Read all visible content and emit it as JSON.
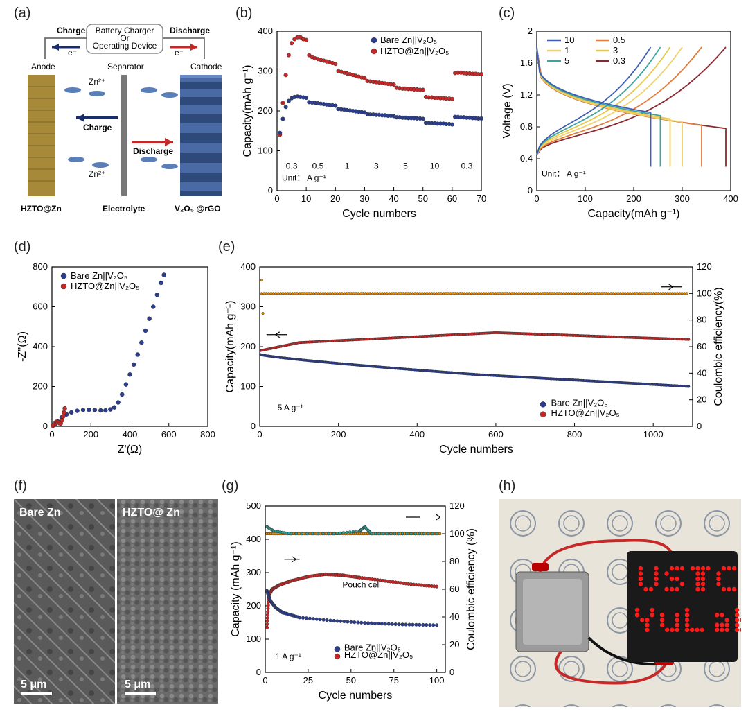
{
  "labels": {
    "a": "(a)",
    "b": "(b)",
    "c": "(c)",
    "d": "(d)",
    "e": "(e)",
    "f": "(f)",
    "g": "(g)",
    "h": "(h)"
  },
  "colors": {
    "blue": "#2a3d8f",
    "red": "#c62828",
    "orange": "#e68a00",
    "teal": "#2aa59a",
    "lineBlue": "#3f5fb5",
    "lineTeal": "#3aa3a0",
    "lineYellow1": "#e6c84a",
    "lineYellow2": "#f0d26a",
    "lineOrange": "#e37b3a",
    "lineDarkRed": "#8b2930",
    "anodeGold": "#a68a3a",
    "cathodeBlue": "#2e4a7a",
    "ionBlue": "#5a7fb8",
    "gridGray": "#d0d0c4",
    "semGray": "#6a6a6a"
  },
  "panelA": {
    "top": {
      "left": "Charge",
      "device": "Battery Charger\nOr\nOperating Device",
      "right": "Discharge",
      "e": "e⁻"
    },
    "anode": "Anode",
    "separator": "Separator",
    "cathode": "Cathode",
    "zn": "Zn²⁺",
    "charge": "Charge",
    "discharge": "Discharge",
    "bottomLeft": "HZTO@Zn",
    "bottomMid": "Electrolyte",
    "bottomRight": "V₂O₅ @rGO"
  },
  "panelB": {
    "type": "scatter",
    "title": "",
    "xlabel": "Cycle numbers",
    "ylabel": "Capacity(mAh g⁻¹)",
    "xlim": [
      0,
      70
    ],
    "ylim": [
      0,
      400
    ],
    "xticks": [
      0,
      10,
      20,
      30,
      40,
      50,
      60,
      70
    ],
    "yticks": [
      0,
      100,
      200,
      300,
      400
    ],
    "unitText": "Unit： A g⁻¹",
    "rateLabels": [
      {
        "x": 5,
        "t": "0.3"
      },
      {
        "x": 14,
        "t": "0.5"
      },
      {
        "x": 24,
        "t": "1"
      },
      {
        "x": 34,
        "t": "3"
      },
      {
        "x": 44,
        "t": "5"
      },
      {
        "x": 54,
        "t": "10"
      },
      {
        "x": 65,
        "t": "0.3"
      }
    ],
    "legend": [
      {
        "label": "Bare Zn||V₂O₅",
        "color": "#2a3d8f"
      },
      {
        "label": "HZTO@Zn||V₂O₅",
        "color": "#c62828"
      }
    ],
    "series": [
      {
        "color": "#c62828",
        "pts": [
          [
            1,
            140
          ],
          [
            2,
            220
          ],
          [
            3,
            290
          ],
          [
            4,
            340
          ],
          [
            5,
            370
          ],
          [
            6,
            380
          ],
          [
            7,
            385
          ],
          [
            8,
            385
          ],
          [
            9,
            380
          ],
          [
            10,
            378
          ],
          [
            11,
            340
          ],
          [
            12,
            335
          ],
          [
            13,
            332
          ],
          [
            14,
            330
          ],
          [
            15,
            328
          ],
          [
            16,
            326
          ],
          [
            17,
            324
          ],
          [
            18,
            322
          ],
          [
            19,
            320
          ],
          [
            20,
            318
          ],
          [
            21,
            300
          ],
          [
            22,
            298
          ],
          [
            23,
            296
          ],
          [
            24,
            294
          ],
          [
            25,
            292
          ],
          [
            26,
            290
          ],
          [
            27,
            288
          ],
          [
            28,
            286
          ],
          [
            29,
            284
          ],
          [
            30,
            282
          ],
          [
            31,
            275
          ],
          [
            32,
            274
          ],
          [
            33,
            273
          ],
          [
            34,
            272
          ],
          [
            35,
            271
          ],
          [
            36,
            270
          ],
          [
            37,
            269
          ],
          [
            38,
            268
          ],
          [
            39,
            267
          ],
          [
            40,
            266
          ],
          [
            41,
            258
          ],
          [
            42,
            257
          ],
          [
            43,
            256
          ],
          [
            44,
            256
          ],
          [
            45,
            255
          ],
          [
            46,
            255
          ],
          [
            47,
            254
          ],
          [
            48,
            254
          ],
          [
            49,
            253
          ],
          [
            50,
            253
          ],
          [
            51,
            235
          ],
          [
            52,
            234
          ],
          [
            53,
            234
          ],
          [
            54,
            233
          ],
          [
            55,
            233
          ],
          [
            56,
            232
          ],
          [
            57,
            232
          ],
          [
            58,
            231
          ],
          [
            59,
            231
          ],
          [
            60,
            230
          ],
          [
            61,
            295
          ],
          [
            62,
            296
          ],
          [
            63,
            296
          ],
          [
            64,
            295
          ],
          [
            65,
            294
          ],
          [
            66,
            294
          ],
          [
            67,
            293
          ],
          [
            68,
            293
          ],
          [
            69,
            292
          ],
          [
            70,
            292
          ]
        ]
      },
      {
        "color": "#2a3d8f",
        "pts": [
          [
            1,
            145
          ],
          [
            2,
            180
          ],
          [
            3,
            210
          ],
          [
            4,
            225
          ],
          [
            5,
            232
          ],
          [
            6,
            235
          ],
          [
            7,
            236
          ],
          [
            8,
            235
          ],
          [
            9,
            234
          ],
          [
            10,
            233
          ],
          [
            11,
            222
          ],
          [
            12,
            221
          ],
          [
            13,
            220
          ],
          [
            14,
            219
          ],
          [
            15,
            218
          ],
          [
            16,
            217
          ],
          [
            17,
            216
          ],
          [
            18,
            215
          ],
          [
            19,
            214
          ],
          [
            20,
            213
          ],
          [
            21,
            205
          ],
          [
            22,
            204
          ],
          [
            23,
            203
          ],
          [
            24,
            202
          ],
          [
            25,
            201
          ],
          [
            26,
            200
          ],
          [
            27,
            199
          ],
          [
            28,
            198
          ],
          [
            29,
            197
          ],
          [
            30,
            196
          ],
          [
            31,
            192
          ],
          [
            32,
            191
          ],
          [
            33,
            191
          ],
          [
            34,
            190
          ],
          [
            35,
            190
          ],
          [
            36,
            189
          ],
          [
            37,
            189
          ],
          [
            38,
            188
          ],
          [
            39,
            188
          ],
          [
            40,
            187
          ],
          [
            41,
            184
          ],
          [
            42,
            184
          ],
          [
            43,
            183
          ],
          [
            44,
            183
          ],
          [
            45,
            182
          ],
          [
            46,
            182
          ],
          [
            47,
            182
          ],
          [
            48,
            181
          ],
          [
            49,
            181
          ],
          [
            50,
            180
          ],
          [
            51,
            170
          ],
          [
            52,
            170
          ],
          [
            53,
            169
          ],
          [
            54,
            169
          ],
          [
            55,
            168
          ],
          [
            56,
            168
          ],
          [
            57,
            168
          ],
          [
            58,
            167
          ],
          [
            59,
            167
          ],
          [
            60,
            166
          ],
          [
            61,
            185
          ],
          [
            62,
            185
          ],
          [
            63,
            184
          ],
          [
            64,
            184
          ],
          [
            65,
            183
          ],
          [
            66,
            183
          ],
          [
            67,
            182
          ],
          [
            68,
            182
          ],
          [
            69,
            181
          ],
          [
            70,
            181
          ]
        ]
      }
    ]
  },
  "panelC": {
    "type": "line",
    "xlabel": "Capacity(mAh g⁻¹)",
    "ylabel": "Voltage (V)",
    "xlim": [
      0,
      400
    ],
    "ylim": [
      0,
      2.0
    ],
    "xticks": [
      0,
      100,
      200,
      300,
      400
    ],
    "yticks": [
      0,
      0.4,
      0.8,
      1.2,
      1.6,
      2.0
    ],
    "unitText": "Unit： A g⁻¹",
    "legend": [
      {
        "label": "10",
        "color": "#3f5fb5"
      },
      {
        "label": "1",
        "color": "#f0d26a"
      },
      {
        "label": "5",
        "color": "#3aa3a0"
      },
      {
        "label": "0.5",
        "color": "#e37b3a"
      },
      {
        "label": "3",
        "color": "#e6c84a"
      },
      {
        "label": "0.3",
        "color": "#8b2930"
      }
    ],
    "curves": [
      {
        "color": "#8b2930",
        "cap": 390,
        "vdMid": 0.78,
        "vcMid": 0.95
      },
      {
        "color": "#e37b3a",
        "cap": 340,
        "vdMid": 0.82,
        "vcMid": 0.98
      },
      {
        "color": "#f0d26a",
        "cap": 300,
        "vdMid": 0.86,
        "vcMid": 1.02
      },
      {
        "color": "#e6c84a",
        "cap": 275,
        "vdMid": 0.9,
        "vcMid": 1.06
      },
      {
        "color": "#3aa3a0",
        "cap": 255,
        "vdMid": 0.94,
        "vcMid": 1.1
      },
      {
        "color": "#3f5fb5",
        "cap": 235,
        "vdMid": 0.98,
        "vcMid": 1.15
      }
    ]
  },
  "panelD": {
    "type": "scatter",
    "xlabel": "Z'(Ω)",
    "ylabel": "-Z''(Ω)",
    "xlim": [
      0,
      800
    ],
    "ylim": [
      0,
      800
    ],
    "xticks": [
      0,
      200,
      400,
      600,
      800
    ],
    "yticks": [
      0,
      200,
      400,
      600,
      800
    ],
    "legend": [
      {
        "label": "Bare Zn||V₂O₅",
        "color": "#2a3d8f"
      },
      {
        "label": "HZTO@Zn||V₂O₅",
        "color": "#c62828"
      }
    ],
    "series": [
      {
        "color": "#2a3d8f",
        "pts": [
          [
            15,
            8
          ],
          [
            30,
            25
          ],
          [
            50,
            45
          ],
          [
            75,
            60
          ],
          [
            100,
            70
          ],
          [
            130,
            78
          ],
          [
            160,
            82
          ],
          [
            190,
            83
          ],
          [
            220,
            82
          ],
          [
            250,
            80
          ],
          [
            275,
            80
          ],
          [
            300,
            85
          ],
          [
            320,
            95
          ],
          [
            340,
            120
          ],
          [
            360,
            160
          ],
          [
            380,
            210
          ],
          [
            400,
            260
          ],
          [
            420,
            310
          ],
          [
            440,
            360
          ],
          [
            460,
            420
          ],
          [
            480,
            480
          ],
          [
            500,
            540
          ],
          [
            520,
            600
          ],
          [
            540,
            660
          ],
          [
            560,
            720
          ],
          [
            575,
            760
          ]
        ]
      },
      {
        "color": "#c62828",
        "pts": [
          [
            5,
            3
          ],
          [
            10,
            8
          ],
          [
            15,
            14
          ],
          [
            22,
            22
          ],
          [
            30,
            20
          ],
          [
            38,
            16
          ],
          [
            45,
            14
          ],
          [
            52,
            30
          ],
          [
            58,
            50
          ],
          [
            62,
            70
          ],
          [
            66,
            90
          ]
        ]
      }
    ]
  },
  "panelE": {
    "type": "dualY",
    "xlabel": "Cycle numbers",
    "ylabel": "Capacity(mAh g⁻¹)",
    "y2label": "Coulombic efficiency(%)",
    "xlim": [
      0,
      1100
    ],
    "ylim": [
      0,
      400
    ],
    "y2lim": [
      0,
      120
    ],
    "xticks": [
      0,
      200,
      400,
      600,
      800,
      1000
    ],
    "yticks": [
      0,
      100,
      200,
      300,
      400
    ],
    "y2ticks": [
      0,
      20,
      40,
      60,
      80,
      100,
      120
    ],
    "rateText": "5 A g⁻¹",
    "legend": [
      {
        "label": "Bare Zn||V₂O₅",
        "color": "#2a3d8f"
      },
      {
        "label": "HZTO@Zn||V₂O₅",
        "color": "#c62828"
      }
    ],
    "lines": {
      "blue": {
        "color": "#2a3d8f",
        "start": [
          2,
          180
        ],
        "mid": [
          550,
          130
        ],
        "end": [
          1090,
          100
        ]
      },
      "red": {
        "color": "#c62828",
        "start": [
          2,
          190
        ],
        "rise": [
          100,
          210
        ],
        "peak": [
          600,
          235
        ],
        "end": [
          1090,
          218
        ]
      },
      "ce": {
        "color": "#e68a00",
        "y": 100
      }
    }
  },
  "panelF": {
    "left": "Bare Zn",
    "right": "HZTO@ Zn",
    "scale": "5 μm"
  },
  "panelG": {
    "type": "dualY",
    "xlabel": "Cycle numbers",
    "ylabel": "Capacity (mAh g⁻¹)",
    "y2label": "Coulombic efficiency (%)",
    "xlim": [
      0,
      105
    ],
    "ylim": [
      0,
      500
    ],
    "y2lim": [
      0,
      120
    ],
    "xticks": [
      0,
      25,
      50,
      75,
      100
    ],
    "yticks": [
      0,
      100,
      200,
      300,
      400,
      500
    ],
    "y2ticks": [
      0,
      20,
      40,
      60,
      80,
      100,
      120
    ],
    "rateText": "1 A g⁻¹",
    "centerText": "Pouch cell",
    "legend": [
      {
        "label": "Bare Zn||V₂O₅",
        "color": "#2a3d8f"
      },
      {
        "label": "HZTO@Zn||V₂O₅",
        "color": "#c62828"
      }
    ],
    "lines": {
      "blue": {
        "color": "#2a3d8f",
        "pts": [
          [
            1,
            245
          ],
          [
            3,
            215
          ],
          [
            6,
            195
          ],
          [
            10,
            180
          ],
          [
            20,
            165
          ],
          [
            40,
            155
          ],
          [
            60,
            148
          ],
          [
            80,
            144
          ],
          [
            100,
            142
          ]
        ]
      },
      "red": {
        "color": "#c62828",
        "pts": [
          [
            1,
            135
          ],
          [
            2,
            230
          ],
          [
            4,
            250
          ],
          [
            8,
            262
          ],
          [
            15,
            275
          ],
          [
            25,
            288
          ],
          [
            35,
            295
          ],
          [
            45,
            292
          ],
          [
            55,
            285
          ],
          [
            70,
            275
          ],
          [
            85,
            265
          ],
          [
            100,
            258
          ]
        ]
      },
      "ceOrange": {
        "color": "#e68a00",
        "y": 100
      },
      "ceTeal": {
        "color": "#2aa59a",
        "pts": [
          [
            1,
            105
          ],
          [
            5,
            102
          ],
          [
            15,
            100
          ],
          [
            40,
            100
          ],
          [
            55,
            102
          ],
          [
            58,
            105
          ],
          [
            62,
            100
          ],
          [
            80,
            100
          ],
          [
            100,
            100
          ]
        ]
      }
    }
  },
  "panelH": {
    "ledText": "USTC\nYuLab",
    "ledColor": "#ff1a1a",
    "bg": "#d4d0c8"
  }
}
